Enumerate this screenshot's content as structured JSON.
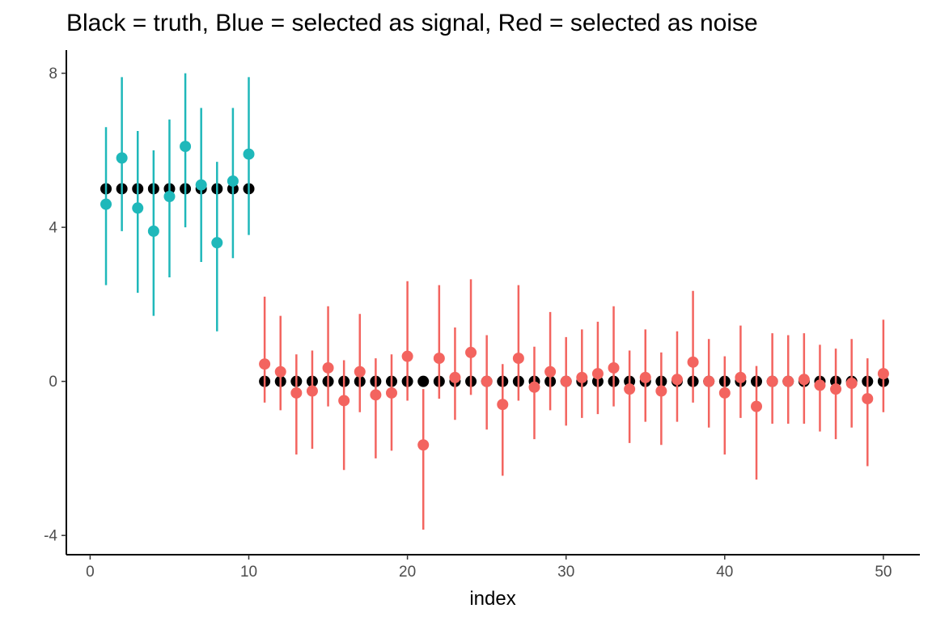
{
  "chart_data": {
    "type": "scatter",
    "title": "Black = truth, Blue = selected as signal, Red = selected as noise",
    "xlabel": "index",
    "ylabel": "",
    "xlim": [
      -1.5,
      52.3
    ],
    "ylim": [
      -4.5,
      8.6
    ],
    "xticks": [
      0,
      10,
      20,
      30,
      40,
      50
    ],
    "yticks": [
      -4,
      0,
      4,
      8
    ],
    "grid": false,
    "colors": {
      "truth": "#000000",
      "signal": "#1fb8ba",
      "noise": "#f3645f"
    },
    "series": [
      {
        "role": "truth",
        "x": [
          1,
          2,
          3,
          4,
          5,
          6,
          7,
          8,
          9,
          10,
          11,
          12,
          13,
          14,
          15,
          16,
          17,
          18,
          19,
          20,
          21,
          22,
          23,
          24,
          25,
          26,
          27,
          28,
          29,
          30,
          31,
          32,
          33,
          34,
          35,
          36,
          37,
          38,
          39,
          40,
          41,
          42,
          43,
          44,
          45,
          46,
          47,
          48,
          49,
          50
        ],
        "y": [
          5,
          5,
          5,
          5,
          5,
          5,
          5,
          5,
          5,
          5,
          0,
          0,
          0,
          0,
          0,
          0,
          0,
          0,
          0,
          0,
          0,
          0,
          0,
          0,
          0,
          0,
          0,
          0,
          0,
          0,
          0,
          0,
          0,
          0,
          0,
          0,
          0,
          0,
          0,
          0,
          0,
          0,
          0,
          0,
          0,
          0,
          0,
          0,
          0,
          0
        ]
      },
      {
        "role": "signal",
        "x": [
          1,
          2,
          3,
          4,
          5,
          6,
          7,
          8,
          9,
          10
        ],
        "y": [
          4.6,
          5.8,
          4.5,
          3.9,
          4.8,
          6.1,
          5.1,
          3.6,
          5.2,
          5.9
        ],
        "lower": [
          2.5,
          3.9,
          2.3,
          1.7,
          2.7,
          4.0,
          3.1,
          1.3,
          3.2,
          3.8
        ],
        "upper": [
          6.6,
          7.9,
          6.5,
          6.0,
          6.8,
          8.0,
          7.1,
          5.7,
          7.1,
          7.9
        ]
      },
      {
        "role": "noise",
        "x": [
          11,
          12,
          13,
          14,
          15,
          16,
          17,
          18,
          19,
          20,
          21,
          22,
          23,
          24,
          25,
          26,
          27,
          28,
          29,
          30,
          31,
          32,
          33,
          34,
          35,
          36,
          37,
          38,
          39,
          40,
          41,
          42,
          43,
          44,
          45,
          46,
          47,
          48,
          49,
          50
        ],
        "y": [
          0.45,
          0.25,
          -0.3,
          -0.25,
          0.35,
          -0.5,
          0.25,
          -0.35,
          -0.3,
          0.65,
          -1.65,
          0.6,
          0.1,
          0.75,
          0.0,
          -0.6,
          0.6,
          -0.15,
          0.25,
          0.0,
          0.1,
          0.2,
          0.35,
          -0.2,
          0.1,
          -0.25,
          0.05,
          0.5,
          0.0,
          -0.3,
          0.1,
          -0.65,
          0.0,
          0.0,
          0.05,
          -0.1,
          -0.2,
          -0.05,
          -0.45,
          0.2
        ],
        "lower": [
          -0.55,
          -0.75,
          -1.9,
          -1.75,
          -0.65,
          -2.3,
          -0.8,
          -2.0,
          -1.8,
          -0.5,
          -3.85,
          -0.45,
          -1.0,
          -0.35,
          -1.25,
          -2.45,
          -0.5,
          -1.5,
          -0.75,
          -1.15,
          -0.95,
          -0.85,
          -0.65,
          -1.6,
          -1.05,
          -1.65,
          -1.05,
          -0.55,
          -1.2,
          -1.9,
          -0.95,
          -2.55,
          -1.1,
          -1.1,
          -1.1,
          -1.3,
          -1.5,
          -1.2,
          -2.2,
          -0.8
        ],
        "upper": [
          2.2,
          1.7,
          0.7,
          0.8,
          1.95,
          0.55,
          1.75,
          0.6,
          0.7,
          2.6,
          -0.2,
          2.5,
          1.4,
          2.65,
          1.2,
          0.45,
          2.5,
          0.9,
          1.8,
          1.15,
          1.35,
          1.55,
          1.95,
          0.8,
          1.35,
          0.75,
          1.3,
          2.35,
          1.1,
          0.65,
          1.45,
          0.4,
          1.25,
          1.2,
          1.25,
          0.95,
          0.85,
          1.1,
          0.6,
          1.6
        ]
      }
    ]
  }
}
